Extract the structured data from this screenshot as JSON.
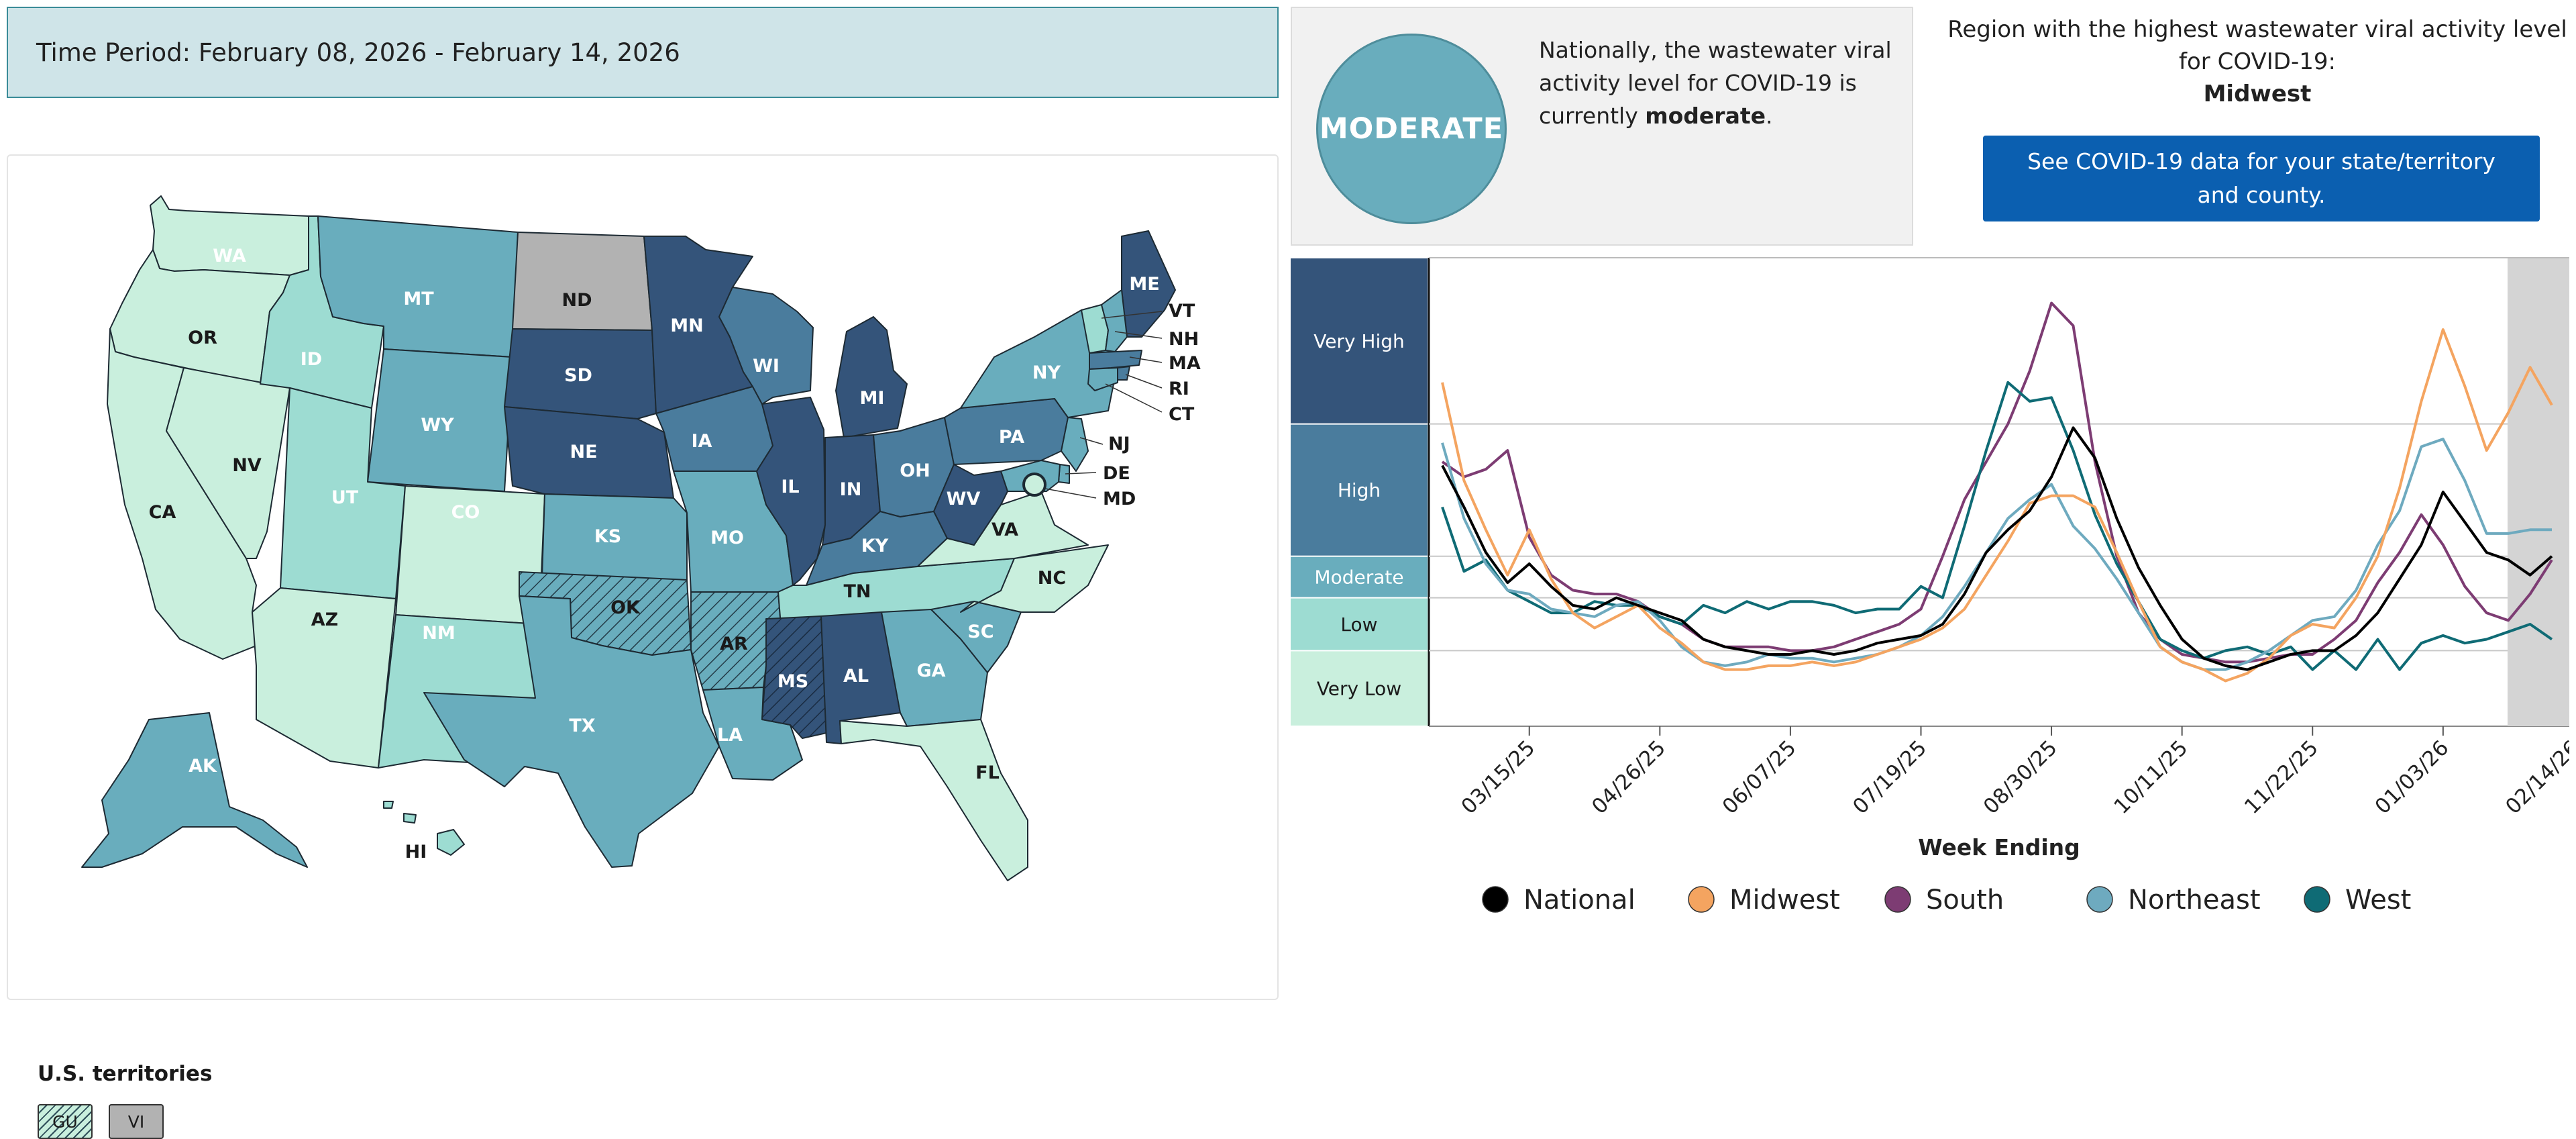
{
  "time_period": "Time Period: February 08, 2026 - February 14, 2026",
  "status": {
    "badge": "MODERATE",
    "text_before": "Nationally, the wastewater viral activity level for COVID-19 is currently ",
    "level_word": "moderate",
    "text_after": "."
  },
  "region": {
    "heading": "Region with the highest wastewater viral activity level for COVID-19:",
    "name": "Midwest"
  },
  "see_data_button": "See COVID-19 data for your state/territory and county.",
  "colors": {
    "very_high": "#34547a",
    "high": "#4a7c9d",
    "moderate": "#69adbd",
    "low": "#9ddcd2",
    "very_low": "#c9efdd",
    "no_data": "#b2b2b2",
    "button": "#0b5fb0"
  },
  "map": {
    "states": [
      "WA",
      "OR",
      "CA",
      "NV",
      "ID",
      "MT",
      "WY",
      "UT",
      "AZ",
      "CO",
      "NM",
      "ND",
      "SD",
      "NE",
      "KS",
      "OK",
      "TX",
      "MN",
      "IA",
      "MO",
      "AR",
      "LA",
      "WI",
      "IL",
      "MI",
      "IN",
      "OH",
      "KY",
      "TN",
      "MS",
      "AL",
      "GA",
      "FL",
      "SC",
      "NC",
      "VA",
      "WV",
      "PA",
      "NY",
      "ME",
      "VT",
      "NH",
      "MA",
      "RI",
      "CT",
      "NJ",
      "DE",
      "MD",
      "AK",
      "HI"
    ],
    "callouts": [
      "VT",
      "NH",
      "MA",
      "RI",
      "CT",
      "NJ",
      "DE",
      "MD"
    ],
    "territories_title": "U.S. territories",
    "territories": [
      "GU",
      "VI"
    ]
  },
  "chart_data": {
    "type": "line",
    "xlabel": "Week Ending",
    "x_ticks": [
      "03/15/25",
      "04/26/25",
      "06/07/25",
      "07/19/25",
      "08/30/25",
      "10/11/25",
      "11/22/25",
      "01/03/26",
      "02/14/26"
    ],
    "levels": [
      "Very High",
      "High",
      "Moderate",
      "Low",
      "Very Low"
    ],
    "y_level_thresholds": [
      2.0,
      3.4,
      4.5,
      8.0
    ],
    "ylim": [
      0,
      12.4
    ],
    "x_start": "2025-02-15",
    "series": [
      {
        "name": "National",
        "color": "#000000",
        "values": [
          6.9,
          5.8,
          4.6,
          3.8,
          4.3,
          3.7,
          3.2,
          3.1,
          3.4,
          3.2,
          3.0,
          2.8,
          2.3,
          2.1,
          2.0,
          1.9,
          1.9,
          2.0,
          1.9,
          2.0,
          2.2,
          2.3,
          2.4,
          2.7,
          3.5,
          4.6,
          5.2,
          5.7,
          6.6,
          7.9,
          7.1,
          5.5,
          4.2,
          3.2,
          2.3,
          1.8,
          1.6,
          1.5,
          1.7,
          1.9,
          2.0,
          2.0,
          2.4,
          3.0,
          3.9,
          4.8,
          6.2,
          5.4,
          4.6,
          4.4,
          4.0,
          4.5
        ]
      },
      {
        "name": "Midwest",
        "color": "#f4a460",
        "values": [
          9.1,
          6.5,
          5.2,
          4.0,
          5.2,
          3.9,
          3.0,
          2.6,
          2.9,
          3.2,
          2.6,
          2.2,
          1.7,
          1.5,
          1.5,
          1.6,
          1.6,
          1.7,
          1.6,
          1.7,
          1.9,
          2.1,
          2.3,
          2.6,
          3.1,
          4.0,
          4.9,
          5.9,
          6.1,
          6.1,
          5.8,
          4.6,
          3.3,
          2.1,
          1.7,
          1.5,
          1.2,
          1.4,
          1.8,
          2.4,
          2.7,
          2.6,
          3.4,
          4.5,
          6.3,
          8.6,
          10.5,
          9.0,
          7.3,
          8.3,
          9.5,
          8.5
        ]
      },
      {
        "name": "South",
        "color": "#7d3c73",
        "values": [
          7.0,
          6.6,
          6.8,
          7.3,
          5.0,
          4.0,
          3.6,
          3.5,
          3.5,
          3.3,
          2.9,
          2.7,
          2.3,
          2.1,
          2.1,
          2.1,
          2.0,
          2.0,
          2.1,
          2.3,
          2.5,
          2.7,
          3.1,
          4.5,
          6.0,
          7.0,
          8.0,
          9.4,
          11.2,
          10.6,
          7.0,
          4.5,
          3.0,
          2.3,
          1.9,
          1.8,
          1.7,
          1.7,
          1.8,
          1.9,
          1.9,
          2.3,
          2.8,
          3.8,
          4.6,
          5.6,
          4.8,
          3.7,
          3.0,
          2.8,
          3.5,
          4.4
        ]
      },
      {
        "name": "Northeast",
        "color": "#6eaabf",
        "values": [
          7.5,
          5.5,
          4.3,
          3.6,
          3.5,
          3.1,
          3.0,
          2.9,
          3.2,
          3.3,
          2.8,
          2.1,
          1.7,
          1.6,
          1.7,
          1.9,
          1.8,
          1.8,
          1.7,
          1.8,
          1.9,
          2.1,
          2.4,
          2.9,
          3.7,
          4.6,
          5.5,
          6.0,
          6.4,
          5.3,
          4.7,
          3.9,
          3.0,
          2.1,
          1.7,
          1.5,
          1.5,
          1.7,
          2.0,
          2.4,
          2.8,
          2.9,
          3.6,
          4.8,
          5.7,
          7.4,
          7.6,
          6.5,
          5.1,
          5.1,
          5.2,
          5.2
        ]
      },
      {
        "name": "West",
        "color": "#0f6b75",
        "values": [
          5.8,
          4.1,
          4.4,
          3.6,
          3.3,
          3.0,
          3.0,
          3.3,
          3.2,
          3.2,
          2.9,
          2.7,
          3.2,
          3.0,
          3.3,
          3.1,
          3.3,
          3.3,
          3.2,
          3.0,
          3.1,
          3.1,
          3.7,
          3.4,
          5.3,
          7.3,
          9.1,
          8.6,
          8.7,
          7.3,
          5.6,
          4.3,
          3.3,
          2.3,
          2.0,
          1.8,
          2.0,
          2.1,
          1.9,
          2.1,
          1.5,
          2.0,
          1.5,
          2.3,
          1.5,
          2.2,
          2.4,
          2.2,
          2.3,
          2.5,
          2.7,
          2.3
        ]
      }
    ]
  }
}
